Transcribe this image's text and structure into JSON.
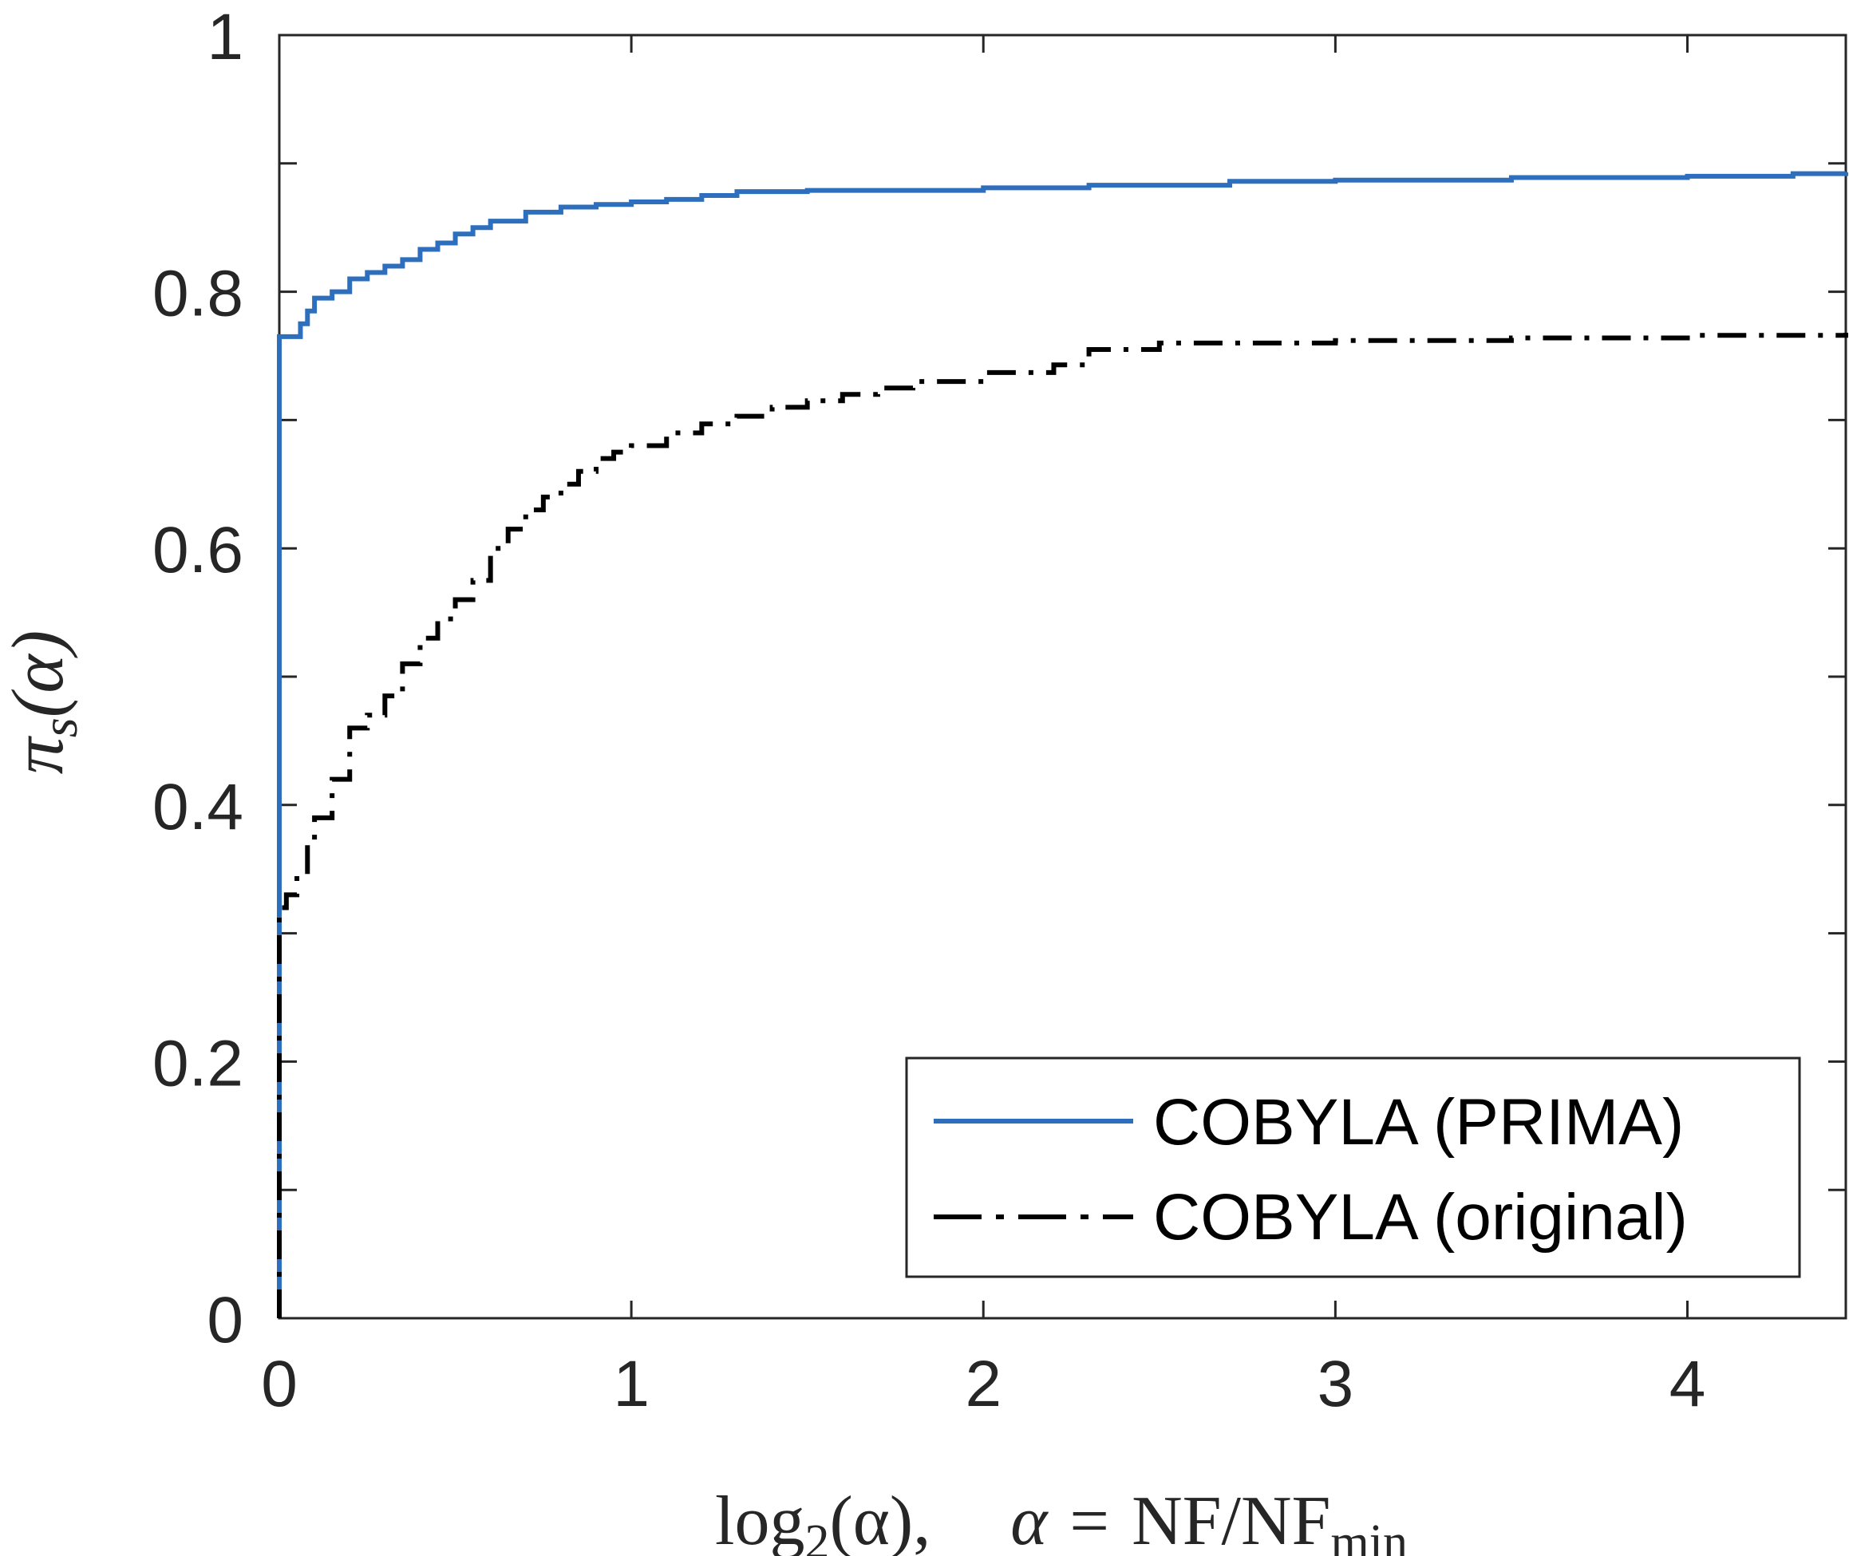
{
  "chart_data": {
    "type": "line",
    "title": "",
    "xlabel": {
      "prefix": "log",
      "log_base": "2",
      "argument": "(α),",
      "alpha": "α",
      "equals": "=",
      "ratio": "NF/NF",
      "ratio_subscript": "min"
    },
    "ylabel": {
      "symbol": "π",
      "subscript": "s",
      "argument": "(α)"
    },
    "xlim": [
      0,
      4.45
    ],
    "ylim": [
      0,
      1
    ],
    "x_ticks": [
      0,
      1,
      2,
      3,
      4
    ],
    "x_tick_labels": [
      "0",
      "1",
      "2",
      "3",
      "4"
    ],
    "y_ticks": [
      0,
      0.1,
      0.2,
      0.3,
      0.4,
      0.5,
      0.6,
      0.7,
      0.8,
      0.9,
      1.0
    ],
    "y_tick_labels": [
      "0",
      "",
      "0.2",
      "",
      "0.4",
      "",
      "0.6",
      "",
      "0.8",
      "",
      "1"
    ],
    "grid": false,
    "legend_position": "bottom-right",
    "series": [
      {
        "name": "COBYLA (PRIMA)",
        "color": "#2e6fbd",
        "style": "solid",
        "x": [
          0,
          0,
          0.02,
          0.06,
          0.08,
          0.1,
          0.15,
          0.2,
          0.25,
          0.3,
          0.35,
          0.4,
          0.45,
          0.5,
          0.55,
          0.6,
          0.7,
          0.8,
          0.9,
          1.0,
          1.1,
          1.2,
          1.3,
          1.5,
          2.0,
          2.3,
          2.7,
          3.0,
          3.5,
          4.0,
          4.3,
          4.45
        ],
        "y": [
          0,
          0.765,
          0.765,
          0.775,
          0.785,
          0.795,
          0.8,
          0.81,
          0.815,
          0.82,
          0.825,
          0.833,
          0.838,
          0.845,
          0.85,
          0.855,
          0.862,
          0.866,
          0.868,
          0.87,
          0.872,
          0.875,
          0.878,
          0.879,
          0.881,
          0.883,
          0.886,
          0.887,
          0.889,
          0.89,
          0.892,
          0.893
        ]
      },
      {
        "name": "COBYLA (original)",
        "color": "#000000",
        "style": "dashdot",
        "x": [
          0,
          0,
          0.02,
          0.05,
          0.08,
          0.1,
          0.15,
          0.2,
          0.25,
          0.3,
          0.35,
          0.4,
          0.45,
          0.5,
          0.55,
          0.6,
          0.65,
          0.7,
          0.75,
          0.8,
          0.85,
          0.9,
          0.95,
          1.0,
          1.1,
          1.2,
          1.3,
          1.4,
          1.5,
          1.6,
          1.7,
          1.8,
          2.0,
          2.2,
          2.3,
          2.5,
          3.0,
          3.5,
          4.0,
          4.45
        ],
        "y": [
          0,
          0.32,
          0.33,
          0.345,
          0.37,
          0.39,
          0.42,
          0.46,
          0.47,
          0.485,
          0.51,
          0.53,
          0.545,
          0.56,
          0.575,
          0.6,
          0.615,
          0.63,
          0.64,
          0.65,
          0.66,
          0.67,
          0.675,
          0.68,
          0.69,
          0.697,
          0.703,
          0.71,
          0.715,
          0.72,
          0.725,
          0.73,
          0.737,
          0.743,
          0.755,
          0.76,
          0.762,
          0.764,
          0.766,
          0.768
        ]
      }
    ]
  }
}
